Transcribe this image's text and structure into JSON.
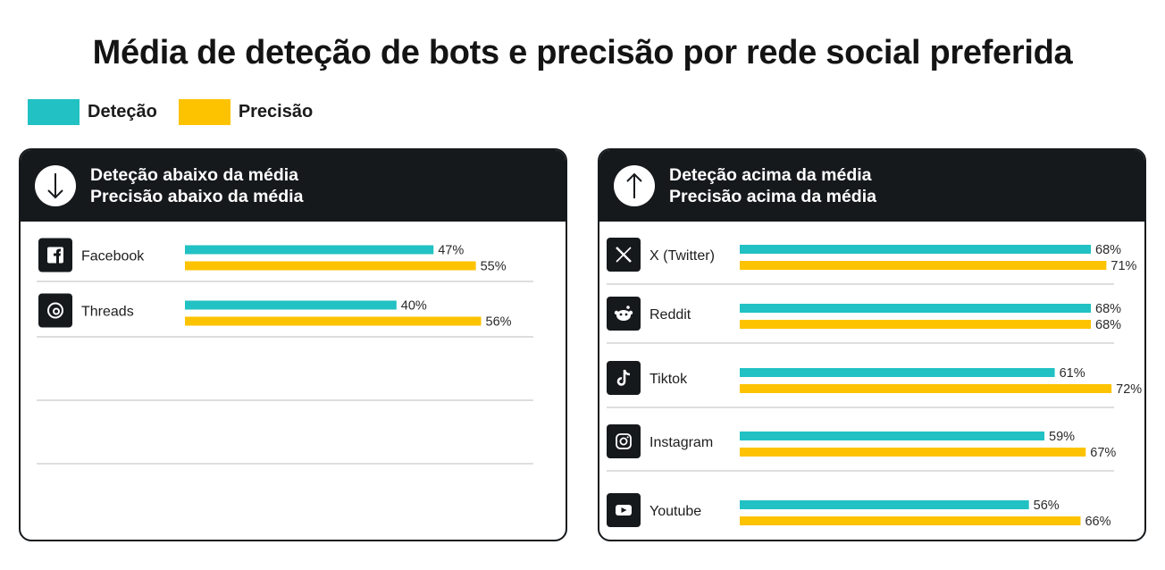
{
  "title": "Média de deteção de bots e precisão por rede social preferida",
  "legend": [
    {
      "label": "Deteção",
      "color": "#22c1c3"
    },
    {
      "label": "Precisão",
      "color": "#fdc300"
    }
  ],
  "colors": {
    "detecao": "#22c1c3",
    "precisao": "#fdc300",
    "dark": "#16191c"
  },
  "chart_data": [
    {
      "type": "bar",
      "orientation": "horizontal",
      "header_icon": "arrow-down-icon",
      "header_lines": [
        "Deteção abaixo da média",
        "Precisão abaixo da média"
      ],
      "categories": [
        "Facebook",
        "Threads"
      ],
      "category_icons": [
        "facebook-icon",
        "threads-icon"
      ],
      "series": [
        {
          "name": "Deteção",
          "values": [
            47,
            40
          ]
        },
        {
          "name": "Precisão",
          "values": [
            55,
            56
          ]
        }
      ],
      "value_suffix": "%",
      "xlim": [
        0,
        100
      ],
      "empty_rows": 3,
      "legend_position": "top-left"
    },
    {
      "type": "bar",
      "orientation": "horizontal",
      "header_icon": "arrow-up-icon",
      "header_lines": [
        "Deteção acima da média",
        "Precisão acima da média"
      ],
      "categories": [
        "X (Twitter)",
        "Reddit",
        "Tiktok",
        "Instagram",
        "Youtube"
      ],
      "category_icons": [
        "x-twitter-icon",
        "reddit-icon",
        "tiktok-icon",
        "instagram-icon",
        "youtube-icon"
      ],
      "series": [
        {
          "name": "Deteção",
          "values": [
            68,
            68,
            61,
            59,
            56
          ]
        },
        {
          "name": "Precisão",
          "values": [
            71,
            68,
            72,
            67,
            66
          ]
        }
      ],
      "value_suffix": "%",
      "xlim": [
        0,
        100
      ],
      "empty_rows": 0,
      "legend_position": "top-left"
    }
  ]
}
